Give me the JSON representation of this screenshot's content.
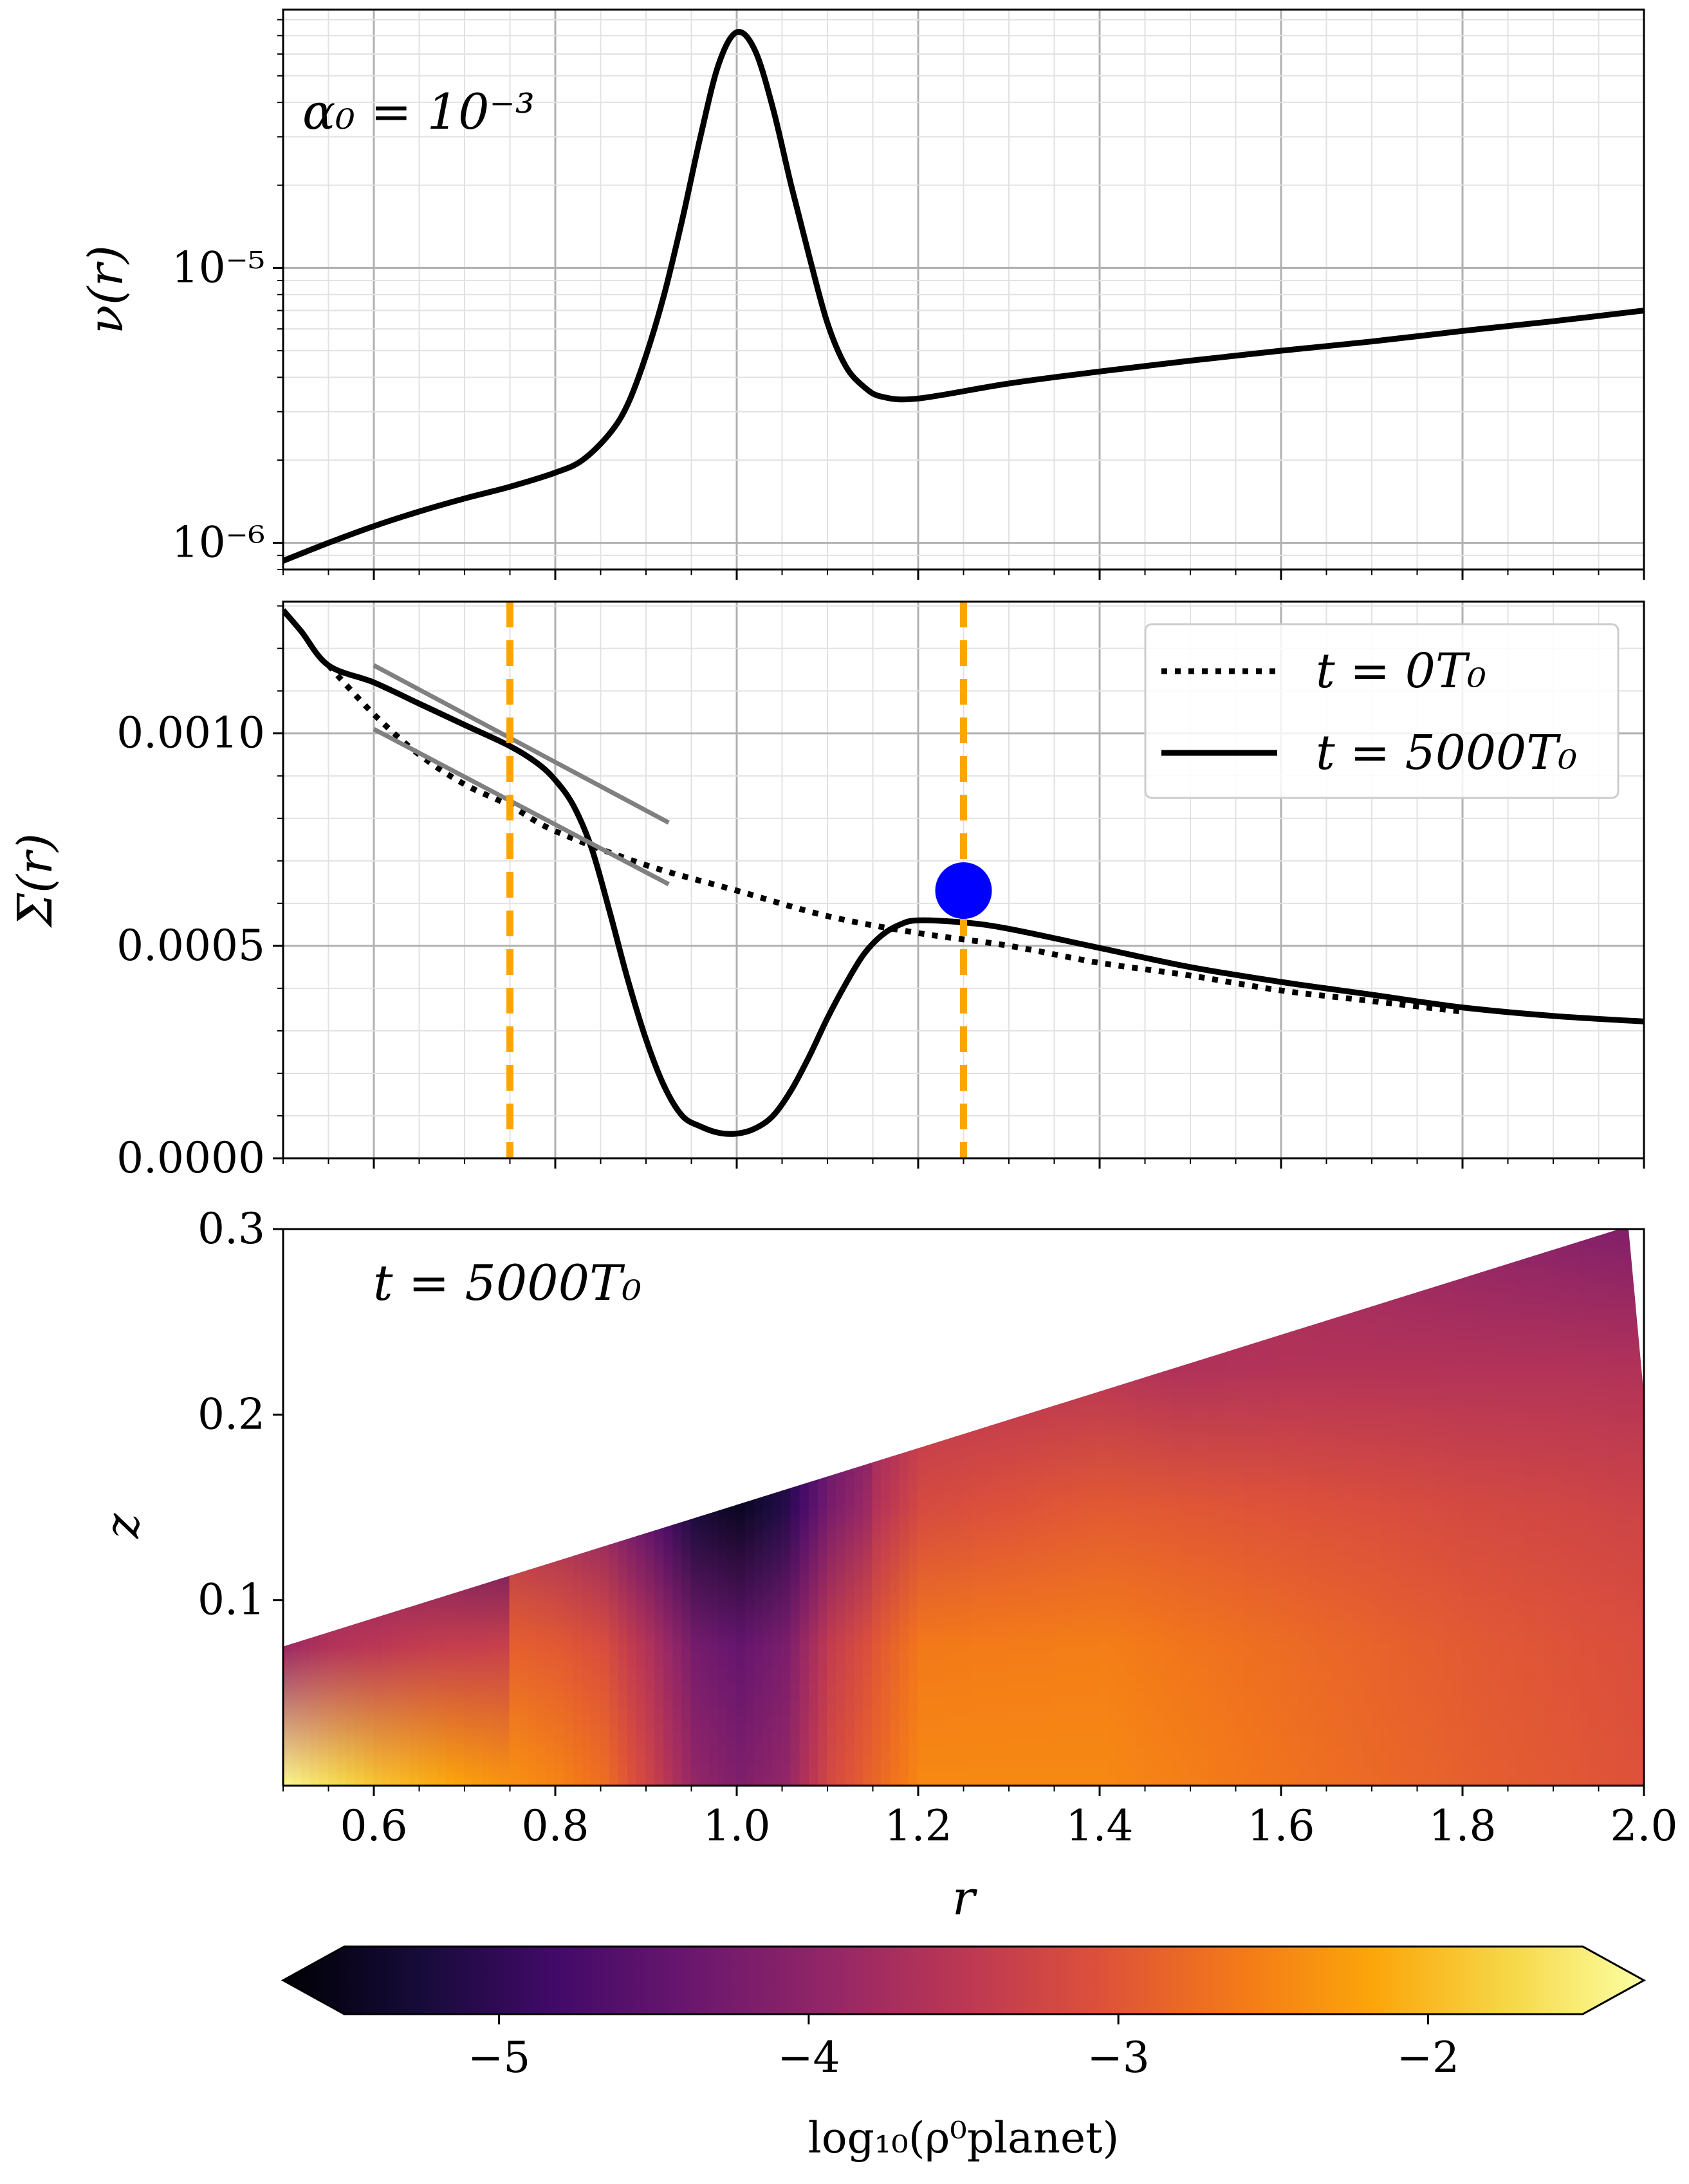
{
  "chart_data": [
    {
      "type": "line",
      "panel": "top",
      "ylabel": "ν(r)",
      "yscale": "log",
      "xlim": [
        0.5,
        2.0
      ],
      "ylim": [
        8e-07,
        8.7e-05
      ],
      "grid": true,
      "y_tick_labels": [
        "10⁻⁶",
        "10⁻⁵"
      ],
      "annotation": "α₀ = 10⁻³",
      "series": [
        {
          "x": [
            0.5,
            0.55,
            0.6,
            0.65,
            0.7,
            0.75,
            0.8,
            0.83,
            0.86,
            0.88,
            0.9,
            0.92,
            0.94,
            0.96,
            0.98,
            1.0,
            1.02,
            1.04,
            1.06,
            1.08,
            1.1,
            1.12,
            1.14,
            1.16,
            1.2,
            1.3,
            1.4,
            1.5,
            1.6,
            1.7,
            1.8,
            1.9,
            2.0
          ],
          "y": [
            8.6e-07,
            1e-06,
            1.15e-06,
            1.3e-06,
            1.45e-06,
            1.6e-06,
            1.8e-06,
            2e-06,
            2.5e-06,
            3.2e-06,
            4.8e-06,
            8e-06,
            1.5e-05,
            3e-05,
            5.5e-05,
            7.2e-05,
            6.2e-05,
            3.8e-05,
            2e-05,
            1.1e-05,
            6.3e-06,
            4.4e-06,
            3.7e-06,
            3.4e-06,
            3.35e-06,
            3.8e-06,
            4.2e-06,
            4.6e-06,
            5e-06,
            5.4e-06,
            5.9e-06,
            6.4e-06,
            7e-06
          ],
          "style": "solid",
          "color": "#000000"
        }
      ]
    },
    {
      "type": "line",
      "panel": "middle",
      "ylabel": "Σ(r)",
      "xlim": [
        0.5,
        2.0
      ],
      "ylim": [
        0.0,
        0.00131
      ],
      "grid": true,
      "y_tick_labels": [
        "0.0000",
        "0.0005",
        "0.0010"
      ],
      "legend_position": "top-right",
      "series": [
        {
          "name": "t = 0T₀",
          "style": "dotted",
          "color": "#000000",
          "x": [
            0.55,
            0.6,
            0.65,
            0.7,
            0.75,
            0.8,
            0.9,
            1.0,
            1.1,
            1.2,
            1.3,
            1.4,
            1.5,
            1.6,
            1.7,
            1.8
          ],
          "y": [
            0.00116,
            0.001045,
            0.00095,
            0.00088,
            0.00083,
            0.00077,
            0.00069,
            0.00063,
            0.00057,
            0.00053,
            0.0005,
            0.00046,
            0.00043,
            0.000395,
            0.00037,
            0.000345
          ]
        },
        {
          "name": "t = 5000T₀",
          "style": "solid",
          "color": "#000000",
          "x": [
            0.5,
            0.52,
            0.55,
            0.6,
            0.65,
            0.7,
            0.75,
            0.78,
            0.8,
            0.82,
            0.84,
            0.86,
            0.88,
            0.9,
            0.92,
            0.94,
            0.96,
            0.98,
            1.0,
            1.02,
            1.04,
            1.06,
            1.08,
            1.1,
            1.12,
            1.14,
            1.16,
            1.18,
            1.2,
            1.25,
            1.3,
            1.4,
            1.5,
            1.6,
            1.7,
            1.8,
            1.9,
            2.0
          ],
          "y": [
            0.00129,
            0.00124,
            0.00116,
            0.00112,
            0.00107,
            0.00102,
            0.00097,
            0.00093,
            0.00089,
            0.00083,
            0.00073,
            0.00058,
            0.00042,
            0.00028,
            0.00017,
            0.0001,
            7.5e-05,
            6e-05,
            5.8e-05,
            7e-05,
            0.0001,
            0.00016,
            0.00024,
            0.00033,
            0.00041,
            0.00048,
            0.000525,
            0.00055,
            0.00056,
            0.000555,
            0.00054,
            0.000495,
            0.00045,
            0.000415,
            0.000385,
            0.000355,
            0.000335,
            0.000322
          ]
        },
        {
          "style": "solid",
          "color": "#808080",
          "x": [
            0.6,
            0.925
          ],
          "y": [
            0.00116,
            0.00079
          ]
        },
        {
          "style": "solid",
          "color": "#808080",
          "x": [
            0.6,
            0.925
          ],
          "y": [
            0.00101,
            0.000645
          ]
        }
      ],
      "vlines": [
        {
          "x": 0.75,
          "color": "#FFA500",
          "style": "dashed"
        },
        {
          "x": 1.25,
          "color": "#FFA500",
          "style": "dashed"
        }
      ],
      "marker": {
        "x": 1.25,
        "y": 0.00063,
        "color": "#0000FF"
      }
    },
    {
      "type": "heatmap",
      "panel": "bottom",
      "xlabel": "r",
      "ylabel": "z",
      "xlim": [
        0.5,
        2.0
      ],
      "ylim": [
        0.0,
        0.3
      ],
      "x_tick_labels": [
        "0.6",
        "0.8",
        "1.0",
        "1.2",
        "1.4",
        "1.6",
        "1.8",
        "2.0"
      ],
      "y_tick_labels": [
        "0.1",
        "0.2",
        "0.3"
      ],
      "annotation": "t = 5000T₀",
      "colormap": "inferno",
      "colorbar": {
        "label": "log₁₀(ρ⁰planet)",
        "range": [
          -5.5,
          -1.5
        ],
        "tick_labels": [
          "−5",
          "−4",
          "−3",
          "−2"
        ],
        "extend": "both",
        "orientation": "horizontal"
      },
      "profile_z0": {
        "r": [
          0.5,
          0.6,
          0.7,
          0.8,
          0.85,
          0.9,
          0.95,
          1.0,
          1.05,
          1.1,
          1.2,
          1.4,
          1.6,
          1.8,
          2.0
        ],
        "value": [
          -1.6,
          -2.05,
          -2.35,
          -2.6,
          -2.8,
          -3.3,
          -3.9,
          -4.1,
          -3.9,
          -3.2,
          -2.55,
          -2.55,
          -2.75,
          -2.95,
          -3.1
        ]
      }
    }
  ]
}
